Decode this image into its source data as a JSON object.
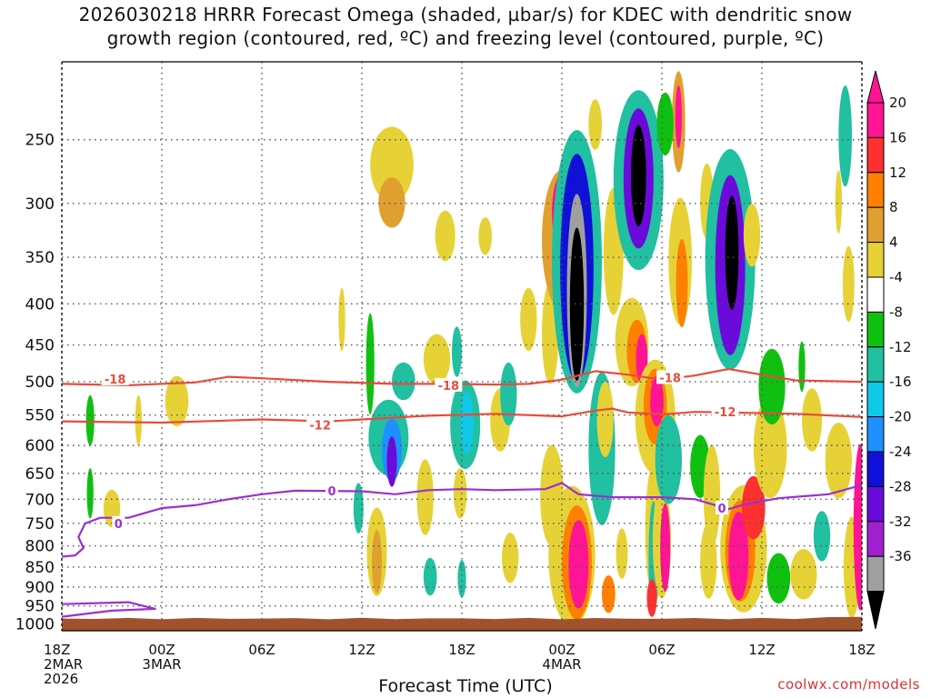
{
  "title": {
    "line1": "2026030218 HRRR Forecast Omega (shaded, µbar/s) for KDEC with dendritic snow",
    "line2": "growth region (contoured, red, ºC) and freezing level (contoured, purple, ºC)"
  },
  "credit": "coolwx.com/models",
  "chart_data": {
    "type": "heatmap",
    "title": "2026030218 HRRR Forecast Omega (shaded, µbar/s) for KDEC with dendritic snow growth region (contoured, red, ºC) and freezing level (contoured, purple, ºC)",
    "xlabel": "Forecast Time (UTC)",
    "ylabel": "",
    "x_hours_range": [
      0,
      48
    ],
    "x_start": "2026-03-02 18Z",
    "x_ticks": [
      {
        "hour": 0,
        "lines": [
          "18Z",
          "2MAR",
          "2026"
        ]
      },
      {
        "hour": 6,
        "lines": [
          "00Z",
          "3MAR"
        ]
      },
      {
        "hour": 12,
        "lines": [
          "06Z"
        ]
      },
      {
        "hour": 18,
        "lines": [
          "12Z"
        ]
      },
      {
        "hour": 24,
        "lines": [
          "18Z"
        ]
      },
      {
        "hour": 30,
        "lines": [
          "00Z",
          "4MAR"
        ]
      },
      {
        "hour": 36,
        "lines": [
          "06Z"
        ]
      },
      {
        "hour": 42,
        "lines": [
          "12Z"
        ]
      },
      {
        "hour": 48,
        "lines": [
          "18Z"
        ]
      }
    ],
    "y_scale": "pressure (hPa), log, decreasing upward",
    "y_range": [
      1020,
      200
    ],
    "y_ticks": [
      250,
      300,
      350,
      400,
      450,
      500,
      550,
      600,
      650,
      700,
      750,
      800,
      850,
      900,
      950,
      1000
    ],
    "grid": true,
    "colorbar": {
      "labels": [
        "20",
        "16",
        "12",
        "8",
        "4",
        "-4",
        "-8",
        "-12",
        "-16",
        "-20",
        "-24",
        "-28",
        "-32",
        "-36"
      ],
      "colors": [
        "#ff1493",
        "#ff3030",
        "#ff7f00",
        "#e0a030",
        "#e6d236",
        "#ffffff",
        "#10c010",
        "#20c0a0",
        "#10c8e8",
        "#1e90ff",
        "#1010d8",
        "#6a0adb",
        "#a020d0",
        "#a0a0a0",
        "#000000"
      ]
    },
    "terrain_color": "#a0522d",
    "terrain_top_hpa": 985,
    "omega_cells": [
      {
        "h": 1.7,
        "p": 560,
        "ph": 8,
        "pw": 0.25,
        "v": -6
      },
      {
        "h": 1.7,
        "p": 690,
        "ph": 8,
        "pw": 0.2,
        "v": -6
      },
      {
        "h": 3.0,
        "p": 720,
        "ph": 6,
        "pw": 0.5,
        "v": 4
      },
      {
        "h": 4.6,
        "p": 560,
        "ph": 8,
        "pw": 0.2,
        "v": 4
      },
      {
        "h": 6.9,
        "p": 530,
        "ph": 8,
        "pw": 0.7,
        "v": 5
      },
      {
        "h": 18.5,
        "p": 480,
        "ph": 16,
        "pw": 0.25,
        "v": -6
      },
      {
        "h": 16.8,
        "p": 420,
        "ph": 10,
        "pw": 0.2,
        "v": 5
      },
      {
        "h": 19.8,
        "p": 270,
        "ph": 12,
        "pw": 1.3,
        "v": 6
      },
      {
        "h": 19.8,
        "p": 300,
        "ph": 8,
        "pw": 0.8,
        "v": 9
      },
      {
        "h": 22.5,
        "p": 470,
        "ph": 8,
        "pw": 0.8,
        "v": 5
      },
      {
        "h": 19.6,
        "p": 590,
        "ph": 12,
        "pw": 1.2,
        "v": -8
      },
      {
        "h": 19.8,
        "p": 610,
        "ph": 10,
        "pw": 0.6,
        "v": -16
      },
      {
        "h": 19.8,
        "p": 630,
        "ph": 8,
        "pw": 0.3,
        "v": -26
      },
      {
        "h": 20.5,
        "p": 500,
        "ph": 6,
        "pw": 0.7,
        "v": -8
      },
      {
        "h": 18.9,
        "p": 820,
        "ph": 14,
        "pw": 0.6,
        "v": 5
      },
      {
        "h": 18.9,
        "p": 840,
        "ph": 10,
        "pw": 0.3,
        "v": 9
      },
      {
        "h": 21.8,
        "p": 700,
        "ph": 12,
        "pw": 0.5,
        "v": 5
      },
      {
        "h": 22.1,
        "p": 875,
        "ph": 6,
        "pw": 0.4,
        "v": -8
      },
      {
        "h": 23.0,
        "p": 330,
        "ph": 8,
        "pw": 0.6,
        "v": 5
      },
      {
        "h": 24.2,
        "p": 570,
        "ph": 14,
        "pw": 0.9,
        "v": -8
      },
      {
        "h": 24.3,
        "p": 565,
        "ph": 10,
        "pw": 0.4,
        "v": -14
      },
      {
        "h": 23.9,
        "p": 690,
        "ph": 8,
        "pw": 0.4,
        "v": 5
      },
      {
        "h": 24.0,
        "p": 880,
        "ph": 6,
        "pw": 0.25,
        "v": -8
      },
      {
        "h": 26.3,
        "p": 560,
        "ph": 10,
        "pw": 0.6,
        "v": 5
      },
      {
        "h": 25.4,
        "p": 330,
        "ph": 6,
        "pw": 0.4,
        "v": 5
      },
      {
        "h": 26.9,
        "p": 830,
        "ph": 8,
        "pw": 0.5,
        "v": 6
      },
      {
        "h": 28.0,
        "p": 420,
        "ph": 10,
        "pw": 0.5,
        "v": 5
      },
      {
        "h": 29.4,
        "p": 700,
        "ph": 16,
        "pw": 0.7,
        "v": 5
      },
      {
        "h": 29.3,
        "p": 440,
        "ph": 16,
        "pw": 0.5,
        "v": 5
      },
      {
        "h": 30.0,
        "p": 340,
        "ph": 22,
        "pw": 1.2,
        "v": 10
      },
      {
        "h": 30.0,
        "p": 310,
        "ph": 12,
        "pw": 0.6,
        "v": 20
      },
      {
        "h": 30.9,
        "p": 380,
        "ph": 40,
        "pw": 1.5,
        "v": -10
      },
      {
        "h": 30.9,
        "p": 380,
        "ph": 35,
        "pw": 1.0,
        "v": -22
      },
      {
        "h": 30.9,
        "p": 400,
        "ph": 30,
        "pw": 0.6,
        "v": -32
      },
      {
        "h": 30.9,
        "p": 410,
        "ph": 24,
        "pw": 0.42,
        "v": -38
      },
      {
        "h": 30.6,
        "p": 840,
        "ph": 22,
        "pw": 1.4,
        "v": 6
      },
      {
        "h": 30.9,
        "p": 850,
        "ph": 18,
        "pw": 0.9,
        "v": 12
      },
      {
        "h": 31.0,
        "p": 850,
        "ph": 14,
        "pw": 0.6,
        "v": 22
      },
      {
        "h": 32.4,
        "p": 620,
        "ph": 24,
        "pw": 0.8,
        "v": -8
      },
      {
        "h": 32.6,
        "p": 560,
        "ph": 12,
        "pw": 0.5,
        "v": 5
      },
      {
        "h": 32.8,
        "p": 920,
        "ph": 6,
        "pw": 0.4,
        "v": 12
      },
      {
        "h": 33.6,
        "p": 820,
        "ph": 8,
        "pw": 0.35,
        "v": 5
      },
      {
        "h": 33.1,
        "p": 350,
        "ph": 20,
        "pw": 0.6,
        "v": 5
      },
      {
        "h": 34.6,
        "p": 290,
        "ph": 28,
        "pw": 1.5,
        "v": -10
      },
      {
        "h": 34.6,
        "p": 285,
        "ph": 22,
        "pw": 0.9,
        "v": -24
      },
      {
        "h": 34.6,
        "p": 280,
        "ph": 16,
        "pw": 0.45,
        "v": -38
      },
      {
        "h": 34.2,
        "p": 450,
        "ph": 14,
        "pw": 1.0,
        "v": 5
      },
      {
        "h": 34.5,
        "p": 460,
        "ph": 10,
        "pw": 0.6,
        "v": 12
      },
      {
        "h": 34.8,
        "p": 470,
        "ph": 8,
        "pw": 0.35,
        "v": 22
      },
      {
        "h": 35.6,
        "p": 560,
        "ph": 18,
        "pw": 1.2,
        "v": 6
      },
      {
        "h": 35.6,
        "p": 540,
        "ph": 12,
        "pw": 0.7,
        "v": 12
      },
      {
        "h": 35.7,
        "p": 530,
        "ph": 8,
        "pw": 0.4,
        "v": 22
      },
      {
        "h": 35.6,
        "p": 780,
        "ph": 22,
        "pw": 0.6,
        "v": 6
      },
      {
        "h": 35.5,
        "p": 840,
        "ph": 18,
        "pw": 0.3,
        "v": -10
      },
      {
        "h": 36.0,
        "p": 800,
        "ph": 18,
        "pw": 0.55,
        "v": 6
      },
      {
        "h": 36.2,
        "p": 810,
        "ph": 14,
        "pw": 0.3,
        "v": 22
      },
      {
        "h": 35.4,
        "p": 930,
        "ph": 6,
        "pw": 0.3,
        "v": 16
      },
      {
        "h": 36.4,
        "p": 630,
        "ph": 14,
        "pw": 0.8,
        "v": -8
      },
      {
        "h": 37.1,
        "p": 360,
        "ph": 20,
        "pw": 0.7,
        "v": 6
      },
      {
        "h": 37.2,
        "p": 380,
        "ph": 14,
        "pw": 0.35,
        "v": 12
      },
      {
        "h": 37.0,
        "p": 240,
        "ph": 16,
        "pw": 0.4,
        "v": 10
      },
      {
        "h": 37.0,
        "p": 235,
        "ph": 10,
        "pw": 0.2,
        "v": 20
      },
      {
        "h": 38.3,
        "p": 640,
        "ph": 10,
        "pw": 0.6,
        "v": -6
      },
      {
        "h": 38.8,
        "p": 840,
        "ph": 12,
        "pw": 0.5,
        "v": 6
      },
      {
        "h": 38.7,
        "p": 300,
        "ph": 12,
        "pw": 0.4,
        "v": 5
      },
      {
        "h": 39.0,
        "p": 700,
        "ph": 16,
        "pw": 0.5,
        "v": 5
      },
      {
        "h": 40.1,
        "p": 370,
        "ph": 34,
        "pw": 1.5,
        "v": -10
      },
      {
        "h": 40.1,
        "p": 370,
        "ph": 28,
        "pw": 0.9,
        "v": -24
      },
      {
        "h": 40.2,
        "p": 350,
        "ph": 18,
        "pw": 0.4,
        "v": -38
      },
      {
        "h": 40.9,
        "p": 820,
        "ph": 20,
        "pw": 1.4,
        "v": 6
      },
      {
        "h": 40.7,
        "p": 820,
        "ph": 16,
        "pw": 0.9,
        "v": 12
      },
      {
        "h": 40.6,
        "p": 830,
        "ph": 14,
        "pw": 0.6,
        "v": 22
      },
      {
        "h": 41.5,
        "p": 720,
        "ph": 10,
        "pw": 0.7,
        "v": 16
      },
      {
        "h": 41.4,
        "p": 330,
        "ph": 10,
        "pw": 0.5,
        "v": 5
      },
      {
        "h": 42.5,
        "p": 610,
        "ph": 16,
        "pw": 1.0,
        "v": 5
      },
      {
        "h": 42.6,
        "p": 510,
        "ph": 12,
        "pw": 0.8,
        "v": -6
      },
      {
        "h": 43.0,
        "p": 880,
        "ph": 8,
        "pw": 0.7,
        "v": -6
      },
      {
        "h": 44.5,
        "p": 870,
        "ph": 8,
        "pw": 0.8,
        "v": 5
      },
      {
        "h": 45.6,
        "p": 780,
        "ph": 8,
        "pw": 0.5,
        "v": -8
      },
      {
        "h": 46.6,
        "p": 630,
        "ph": 12,
        "pw": 0.8,
        "v": 5
      },
      {
        "h": 46.6,
        "p": 300,
        "ph": 10,
        "pw": 0.2,
        "v": 5
      },
      {
        "h": 47.0,
        "p": 250,
        "ph": 16,
        "pw": 0.4,
        "v": -8
      },
      {
        "h": 47.4,
        "p": 860,
        "ph": 16,
        "pw": 0.5,
        "v": 5
      },
      {
        "h": 47.9,
        "p": 780,
        "ph": 26,
        "pw": 0.4,
        "v": 22
      },
      {
        "h": 47.2,
        "p": 380,
        "ph": 12,
        "pw": 0.35,
        "v": 5
      },
      {
        "h": 45.0,
        "p": 560,
        "ph": 10,
        "pw": 0.6,
        "v": 5
      },
      {
        "h": 44.4,
        "p": 480,
        "ph": 8,
        "pw": 0.2,
        "v": -6
      },
      {
        "h": 26.8,
        "p": 520,
        "ph": 10,
        "pw": 0.5,
        "v": -8
      },
      {
        "h": 23.7,
        "p": 460,
        "ph": 8,
        "pw": 0.3,
        "v": -8
      },
      {
        "h": 17.8,
        "p": 720,
        "ph": 8,
        "pw": 0.3,
        "v": -8
      },
      {
        "h": 36.2,
        "p": 240,
        "ph": 10,
        "pw": 0.5,
        "v": -6
      },
      {
        "h": 32.0,
        "p": 240,
        "ph": 8,
        "pw": 0.4,
        "v": 5
      }
    ],
    "contours": [
      {
        "name": "-18",
        "color": "#e74c3c",
        "label_positions": [
          {
            "h": 3.2,
            "p": 496
          },
          {
            "h": 23.2,
            "p": 505
          },
          {
            "h": 36.5,
            "p": 494
          }
        ],
        "points": [
          [
            0,
            503
          ],
          [
            4,
            505
          ],
          [
            8,
            501
          ],
          [
            10,
            493
          ],
          [
            12,
            495
          ],
          [
            16,
            500
          ],
          [
            20,
            503
          ],
          [
            23,
            503
          ],
          [
            26,
            504
          ],
          [
            28,
            503
          ],
          [
            30,
            497
          ],
          [
            32,
            485
          ],
          [
            34,
            490
          ],
          [
            36,
            497
          ],
          [
            38,
            491
          ],
          [
            40,
            482
          ],
          [
            42,
            490
          ],
          [
            44,
            498
          ],
          [
            48,
            500
          ]
        ]
      },
      {
        "name": "-12",
        "color": "#e74c3c",
        "label_positions": [
          {
            "h": 15.5,
            "p": 566
          },
          {
            "h": 39.8,
            "p": 545
          }
        ],
        "points": [
          [
            0,
            560
          ],
          [
            6,
            562
          ],
          [
            12,
            557
          ],
          [
            16,
            560
          ],
          [
            22,
            551
          ],
          [
            26,
            548
          ],
          [
            30,
            552
          ],
          [
            32,
            543
          ],
          [
            33,
            540
          ],
          [
            34,
            546
          ],
          [
            36,
            549
          ],
          [
            38,
            545
          ],
          [
            40,
            546
          ],
          [
            44,
            548
          ],
          [
            48,
            553
          ]
        ]
      },
      {
        "name": "0",
        "color": "#9b30d0",
        "label_positions": [
          {
            "h": 3.4,
            "p": 750
          },
          {
            "h": 16.2,
            "p": 683
          },
          {
            "h": 39.6,
            "p": 718
          }
        ],
        "points": [
          [
            0,
            825
          ],
          [
            0.8,
            822
          ],
          [
            1.3,
            805
          ],
          [
            1.0,
            780
          ],
          [
            1.4,
            750
          ],
          [
            2.3,
            738
          ],
          [
            4,
            738
          ],
          [
            6,
            718
          ],
          [
            8,
            712
          ],
          [
            10,
            700
          ],
          [
            12,
            690
          ],
          [
            14,
            683
          ],
          [
            18,
            684
          ],
          [
            20,
            690
          ],
          [
            22,
            682
          ],
          [
            24,
            680
          ],
          [
            26,
            682
          ],
          [
            29,
            680
          ],
          [
            30,
            668
          ],
          [
            31,
            690
          ],
          [
            33,
            696
          ],
          [
            36,
            696
          ],
          [
            38,
            700
          ],
          [
            40,
            720
          ],
          [
            41,
            710
          ],
          [
            43,
            698
          ],
          [
            46,
            690
          ],
          [
            48,
            672
          ]
        ]
      },
      {
        "name": "0-low",
        "color": "#9b30d0",
        "label_positions": [],
        "points": [
          [
            0,
            980
          ],
          [
            3,
            963
          ],
          [
            5.6,
            958
          ],
          [
            4.0,
            940
          ],
          [
            0,
            945
          ]
        ]
      }
    ]
  }
}
